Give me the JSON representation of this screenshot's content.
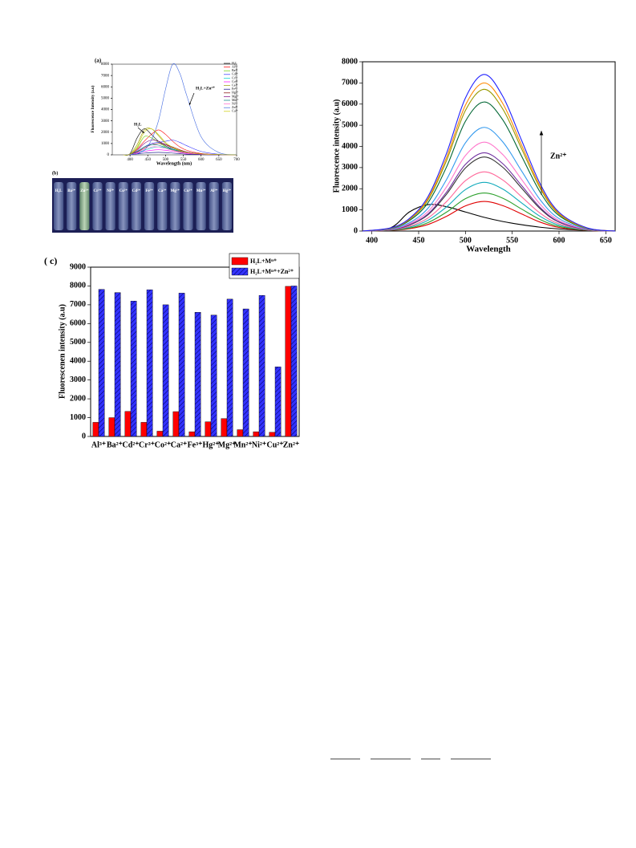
{
  "chart_data": [
    {
      "type": "line",
      "panel_label": "(a)",
      "x_label": "Wavelength (nm)",
      "y_label": "Fluorescence Intensity (a.u)",
      "x": [
        380,
        400,
        420,
        440,
        460,
        480,
        500,
        520,
        540,
        560,
        600,
        650,
        700
      ],
      "xlim": [
        350,
        700
      ],
      "xticks": [
        400,
        450,
        500,
        550,
        600,
        650,
        700
      ],
      "ylim": [
        0,
        8000
      ],
      "yticks": [
        0,
        1000,
        2000,
        3000,
        4000,
        5000,
        6000,
        7000,
        8000
      ],
      "legend": "upper right",
      "annotations": [
        "H₂L+Zn²⁺",
        "H₂L"
      ],
      "series": [
        {
          "name": "H₂L",
          "color": "#000000",
          "values": [
            0,
            100,
            1500,
            2300,
            1800,
            1200,
            800,
            500,
            300,
            200,
            80,
            20,
            0
          ]
        },
        {
          "name": "Al³⁺",
          "color": "#ff0000",
          "values": [
            0,
            50,
            500,
            1200,
            1800,
            2200,
            1800,
            1200,
            700,
            400,
            120,
            20,
            0
          ]
        },
        {
          "name": "Ba²⁺",
          "color": "#66cc00",
          "values": [
            0,
            50,
            600,
            1600,
            1500,
            1100,
            700,
            400,
            250,
            150,
            60,
            10,
            0
          ]
        },
        {
          "name": "Cd²⁺",
          "color": "#3333ff",
          "values": [
            0,
            40,
            300,
            700,
            1000,
            1100,
            1200,
            1300,
            1100,
            800,
            300,
            50,
            0
          ]
        },
        {
          "name": "Cr³⁺",
          "color": "#00cccc",
          "values": [
            0,
            30,
            200,
            400,
            600,
            700,
            650,
            500,
            350,
            200,
            80,
            10,
            0
          ]
        },
        {
          "name": "Co²⁺",
          "color": "#ff00ff",
          "values": [
            0,
            20,
            150,
            300,
            400,
            450,
            400,
            300,
            200,
            120,
            40,
            10,
            0
          ]
        },
        {
          "name": "Ca²⁺",
          "color": "#999900",
          "values": [
            0,
            60,
            900,
            2200,
            2300,
            1700,
            1000,
            600,
            350,
            200,
            80,
            20,
            0
          ]
        },
        {
          "name": "Fe³⁺",
          "color": "#000080",
          "values": [
            0,
            10,
            80,
            150,
            200,
            220,
            200,
            150,
            100,
            60,
            20,
            0,
            0
          ]
        },
        {
          "name": "Hg²⁺",
          "color": "#800000",
          "values": [
            0,
            30,
            250,
            600,
            900,
            1000,
            900,
            700,
            450,
            250,
            80,
            10,
            0
          ]
        },
        {
          "name": "Mg²⁺",
          "color": "#800080",
          "values": [
            0,
            40,
            400,
            1000,
            1300,
            1200,
            900,
            600,
            400,
            250,
            80,
            10,
            0
          ]
        },
        {
          "name": "Mn²⁺",
          "color": "#008080",
          "values": [
            0,
            30,
            300,
            700,
            900,
            850,
            650,
            450,
            300,
            180,
            60,
            10,
            0
          ]
        },
        {
          "name": "Ni²⁺",
          "color": "#ff66cc",
          "values": [
            0,
            20,
            200,
            500,
            700,
            700,
            550,
            400,
            280,
            170,
            50,
            10,
            0
          ]
        },
        {
          "name": "Zn²⁺",
          "color": "#4169e1",
          "values": [
            0,
            20,
            100,
            400,
            1300,
            3000,
            5800,
            8000,
            7200,
            5200,
            1600,
            200,
            20
          ]
        },
        {
          "name": "Cu²⁺",
          "color": "#cccc00",
          "values": [
            0,
            50,
            700,
            2000,
            2300,
            1800,
            1100,
            650,
            400,
            220,
            80,
            20,
            0
          ]
        }
      ]
    },
    {
      "type": "line",
      "x_label": "Wavelength",
      "y_label": "Fluorescence intensity (a.u)",
      "x": [
        390,
        420,
        440,
        460,
        480,
        500,
        520,
        540,
        560,
        580,
        600,
        630,
        660
      ],
      "xlim": [
        390,
        660
      ],
      "xticks": [
        400,
        450,
        500,
        550,
        600,
        650
      ],
      "ylim": [
        0,
        8000
      ],
      "yticks": [
        0,
        1000,
        2000,
        3000,
        4000,
        5000,
        6000,
        7000,
        8000
      ],
      "annotations": [
        "Zn²⁺"
      ],
      "series": [
        {
          "color": "#000000",
          "values": [
            0,
            150,
            900,
            1250,
            1150,
            900,
            650,
            450,
            300,
            180,
            100,
            30,
            0
          ]
        },
        {
          "color": "#e00000",
          "values": [
            0,
            30,
            110,
            310,
            700,
            1190,
            1400,
            1200,
            810,
            420,
            170,
            30,
            0
          ]
        },
        {
          "color": "#2ca02c",
          "values": [
            0,
            40,
            140,
            400,
            900,
            1530,
            1800,
            1550,
            1040,
            540,
            220,
            40,
            0
          ]
        },
        {
          "color": "#11aabb",
          "values": [
            0,
            50,
            180,
            510,
            1150,
            1960,
            2300,
            1980,
            1330,
            690,
            280,
            50,
            0
          ]
        },
        {
          "color": "#ff6699",
          "values": [
            0,
            60,
            220,
            620,
            1400,
            2380,
            2800,
            2410,
            1620,
            840,
            340,
            60,
            0
          ]
        },
        {
          "color": "#333333",
          "values": [
            0,
            70,
            280,
            770,
            1750,
            2980,
            3500,
            3010,
            2030,
            1050,
            420,
            70,
            0
          ]
        },
        {
          "color": "#7030a0",
          "values": [
            0,
            70,
            300,
            810,
            1850,
            3150,
            3700,
            3180,
            2150,
            1110,
            440,
            70,
            0
          ]
        },
        {
          "color": "#ff77cc",
          "values": [
            0,
            80,
            340,
            920,
            2100,
            3570,
            4200,
            3610,
            2440,
            1260,
            500,
            80,
            0
          ]
        },
        {
          "color": "#3399ee",
          "values": [
            0,
            100,
            390,
            1080,
            2450,
            4170,
            4900,
            4210,
            2840,
            1470,
            590,
            100,
            0
          ]
        },
        {
          "color": "#006633",
          "values": [
            0,
            120,
            490,
            1340,
            3050,
            5190,
            6100,
            5250,
            3540,
            1830,
            730,
            120,
            0
          ]
        },
        {
          "color": "#999900",
          "values": [
            0,
            130,
            540,
            1470,
            3350,
            5700,
            6700,
            5760,
            3890,
            2010,
            800,
            130,
            0
          ]
        },
        {
          "color": "#ff8800",
          "values": [
            0,
            140,
            560,
            1540,
            3500,
            5950,
            7000,
            6020,
            4060,
            2100,
            840,
            140,
            0
          ]
        },
        {
          "color": "#2222ff",
          "values": [
            0,
            150,
            590,
            1630,
            3700,
            6290,
            7400,
            6360,
            4290,
            2220,
            890,
            150,
            0
          ]
        }
      ]
    },
    {
      "type": "bar",
      "panel_label": "( c)",
      "y_label": "Fluorescenen intensity (a.u)",
      "categories": [
        "Al³⁺",
        "Ba²⁺",
        "Cd²⁺",
        "Cr³⁺",
        "Co²⁺",
        "Ca²⁺",
        "Fe³⁺",
        "Hg²⁺",
        "Mg²⁺",
        "Mn²⁺",
        "Ni²⁺",
        "Cu²⁺",
        "Zn²⁺"
      ],
      "ylim": [
        0,
        9000
      ],
      "yticks": [
        0,
        1000,
        2000,
        3000,
        4000,
        5000,
        6000,
        7000,
        8000,
        9000
      ],
      "legend": "upper right",
      "series": [
        {
          "name": "H₂L+Mⁿ⁺",
          "color": "#ff0000",
          "values": [
            750,
            1000,
            1330,
            750,
            280,
            1320,
            250,
            780,
            950,
            360,
            250,
            220,
            7980
          ]
        },
        {
          "name": "H₂L+Mⁿ⁺+Zn²⁺",
          "color": "#3333ff",
          "hatch": true,
          "values": [
            7820,
            7650,
            7200,
            7800,
            7000,
            7620,
            6600,
            6450,
            7300,
            6780,
            7500,
            3700,
            8000
          ]
        }
      ]
    }
  ],
  "photo": {
    "label": "(b)",
    "vials": [
      "H₂L",
      "Ba²⁺",
      "Zn²⁺",
      "Cr³⁺",
      "Ni²⁺",
      "Co²⁺",
      "Cd²⁺",
      "Fe³⁺",
      "Ca²⁺",
      "Mg²⁺",
      "Cu²⁺",
      "Mn²⁺",
      "Al³⁺",
      "Hg²⁺"
    ]
  }
}
